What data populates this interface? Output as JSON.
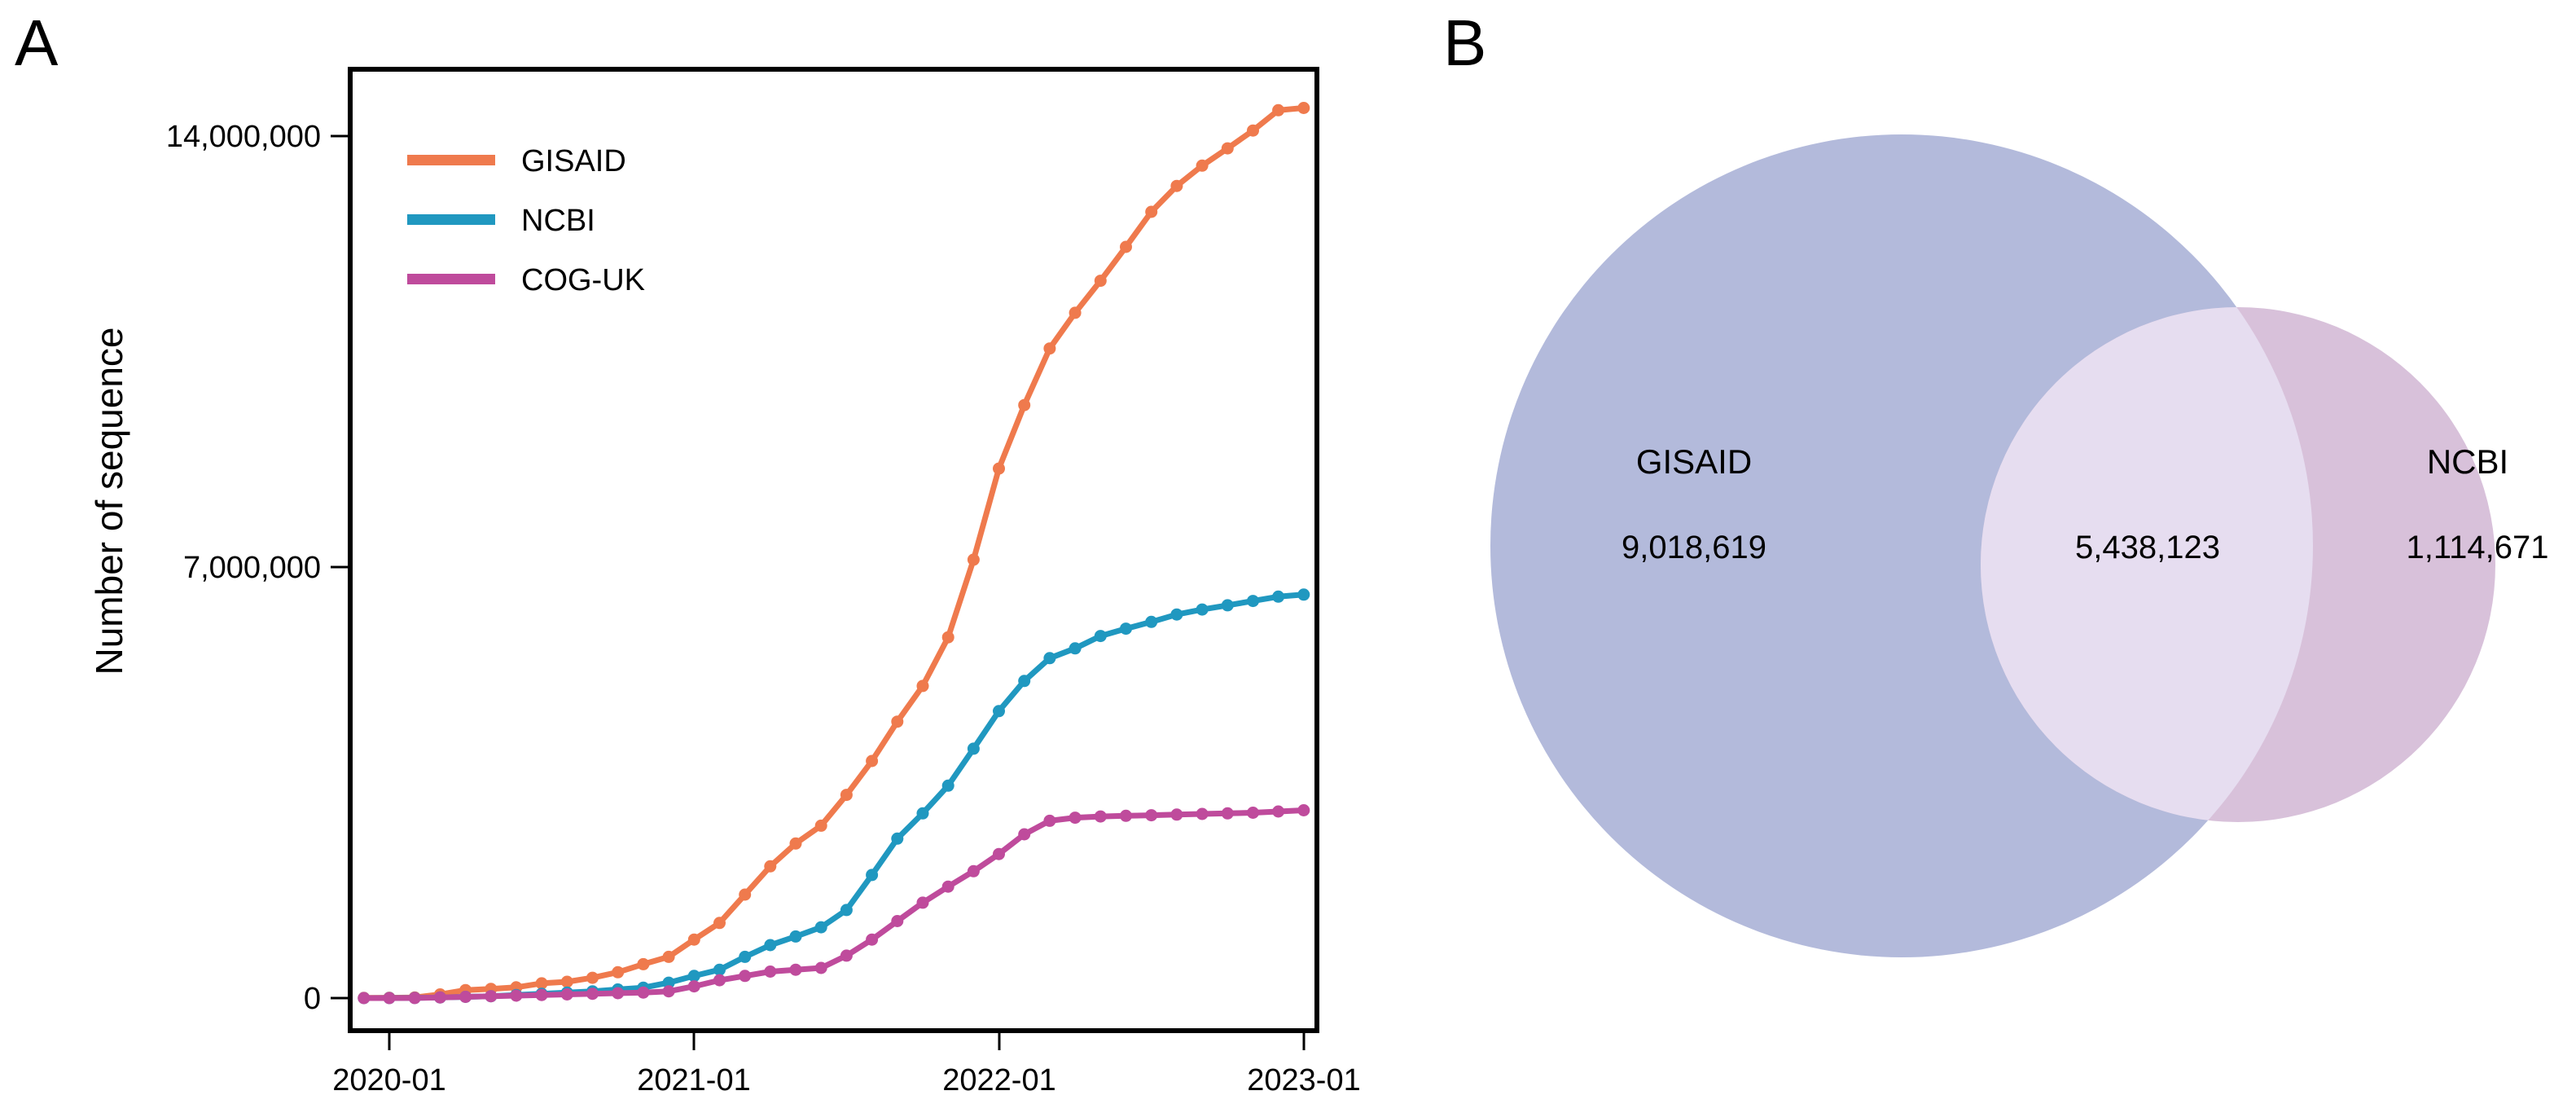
{
  "figure": {
    "background_color": "#ffffff",
    "text_color": "#000000"
  },
  "panel_a": {
    "label": "A",
    "y_axis": {
      "title": "Number of sequence",
      "ticks": [
        {
          "value": 14000000,
          "label": "14,000,000"
        },
        {
          "value": 7000000,
          "label": "7,000,000"
        },
        {
          "value": 0,
          "label": "0"
        }
      ]
    },
    "x_axis": {
      "ticks": [
        "2020-01",
        "2021-01",
        "2022-01",
        "2023-01"
      ]
    }
  },
  "chart_data": {
    "type": "line",
    "title": "",
    "xlabel": "",
    "ylabel": "Number of sequence",
    "grid": false,
    "legend_position": "top-left",
    "ylim": [
      0,
      14800000
    ],
    "y_ticks": [
      0,
      7000000,
      14000000
    ],
    "x_tick_labels": [
      "2020-01",
      "2021-01",
      "2022-01",
      "2023-01"
    ],
    "x": [
      "2019-12",
      "2020-01",
      "2020-02",
      "2020-03",
      "2020-04",
      "2020-05",
      "2020-06",
      "2020-07",
      "2020-08",
      "2020-09",
      "2020-10",
      "2020-11",
      "2020-12",
      "2021-01",
      "2021-02",
      "2021-03",
      "2021-04",
      "2021-05",
      "2021-06",
      "2021-07",
      "2021-08",
      "2021-09",
      "2021-10",
      "2021-11",
      "2021-12",
      "2022-01",
      "2022-02",
      "2022-03",
      "2022-04",
      "2022-05",
      "2022-06",
      "2022-07",
      "2022-08",
      "2022-09",
      "2022-10",
      "2022-11",
      "2022-12",
      "2023-01"
    ],
    "series": [
      {
        "name": "GISAID",
        "color": "#ef7a4d",
        "values": [
          2000,
          5000,
          10000,
          60000,
          130000,
          150000,
          175000,
          240000,
          265000,
          330000,
          420000,
          550000,
          670000,
          950000,
          1220000,
          1680000,
          2140000,
          2510000,
          2800000,
          3300000,
          3850000,
          4490000,
          5070000,
          5860000,
          7120000,
          8600000,
          9630000,
          10550000,
          11130000,
          11650000,
          12200000,
          12770000,
          13190000,
          13520000,
          13800000,
          14090000,
          14420000,
          14456742
        ]
      },
      {
        "name": "NCBI",
        "color": "#2098c0",
        "values": [
          0,
          1000,
          3000,
          10000,
          20000,
          30000,
          50000,
          70000,
          90000,
          110000,
          140000,
          170000,
          250000,
          360000,
          460000,
          670000,
          860000,
          1000000,
          1150000,
          1430000,
          2000000,
          2590000,
          3000000,
          3450000,
          4050000,
          4660000,
          5150000,
          5520000,
          5680000,
          5880000,
          6000000,
          6110000,
          6230000,
          6310000,
          6380000,
          6450000,
          6520000,
          6552794
        ]
      },
      {
        "name": "COG-UK",
        "color": "#bf4b9c",
        "values": [
          0,
          0,
          1000,
          10000,
          20000,
          30000,
          40000,
          50000,
          60000,
          70000,
          80000,
          90000,
          110000,
          190000,
          290000,
          360000,
          430000,
          460000,
          490000,
          690000,
          950000,
          1250000,
          1550000,
          1810000,
          2060000,
          2340000,
          2660000,
          2880000,
          2930000,
          2950000,
          2960000,
          2970000,
          2980000,
          2990000,
          3000000,
          3010000,
          3030000,
          3050000
        ]
      }
    ]
  },
  "panel_b": {
    "label": "B",
    "venn": {
      "sets": [
        {
          "name": "GISAID",
          "unique_count": 9018619,
          "unique_label": "9,018,619",
          "color": "#b3badb"
        },
        {
          "name": "NCBI",
          "unique_count": 1114671,
          "unique_label": "1,114,671",
          "color": "#d8c1da"
        }
      ],
      "intersection_count": 5438123,
      "intersection_label": "5,438,123",
      "intersection_color": "#e6ddf0"
    }
  }
}
